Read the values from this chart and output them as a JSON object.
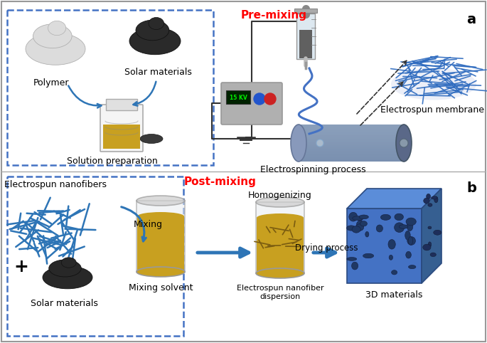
{
  "bg_color": "#ffffff",
  "panel_a_label": "a",
  "panel_b_label": "b",
  "premixing_label": "Pre-mixing",
  "postmixing_label": "Post-mixing",
  "premixing_color": "#ff0000",
  "postmixing_color": "#ff0000",
  "dashed_box_color": "#4472c4",
  "arrow_color": "#2e75b6",
  "text_color": "#000000",
  "solution_prep_label": "Solution preparation",
  "polymer_label": "Polymer",
  "solar_materials_label": "Solar materials",
  "electrospinning_label": "Electrospinning process",
  "electrospun_membrane_label": "Electrospun membrane",
  "electrospun_nanofibers_label": "Electrospun nanofibers",
  "solar_materials2_label": "Solar materials",
  "mixing_label": "Mixing",
  "mixing_solvent_label": "Mixing solvent",
  "homogenizing_label": "Homogenizing",
  "drying_label": "Drying process",
  "nanofiber_disp_label": "Electrospun nanofiber\ndispersion",
  "3d_materials_label": "3D materials",
  "plus_label": "+",
  "fiber_color": "#2e75b6",
  "cube_front": "#4472c4",
  "cube_top": "#5b8dd9",
  "cube_right": "#365f91",
  "pore_color": "#1f3864"
}
